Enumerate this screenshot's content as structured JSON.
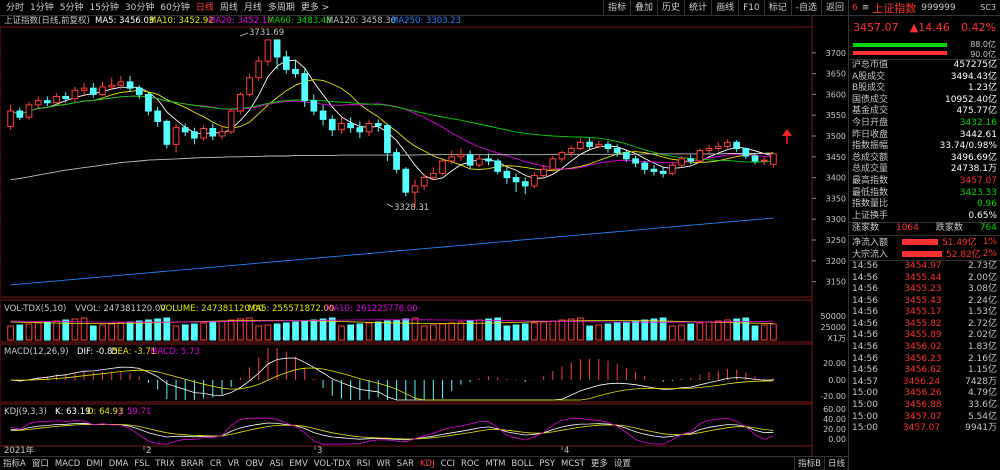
{
  "period_tabs": [
    "分时",
    "1分钟",
    "5分钟",
    "15分钟",
    "30分钟",
    "60分钟",
    "日线",
    "周线",
    "月线",
    "多周期",
    "更多 >"
  ],
  "active_period": "日线",
  "tool_tabs": [
    "指标",
    "叠加",
    "历史",
    "统计",
    "画线",
    "F10",
    "标记",
    "-自选",
    "返回"
  ],
  "main_legend": {
    "name": "上证指数(日线,前复权)",
    "ma5": "MA5: 3456.03",
    "ma10": "MA10: 3452.92",
    "ma20": "MA20: 3452.19",
    "ma60": "MA60: 3483.43",
    "ma120": "MA120: 3458.30",
    "ma250": "MA250: 3303.23"
  },
  "annotations": {
    "high": "3731.69",
    "low": "3328.31"
  },
  "price_axis": [
    "3700",
    "3650",
    "3600",
    "3550",
    "3500",
    "3450",
    "3400",
    "3350",
    "3300",
    "3250",
    "3200",
    "3150"
  ],
  "vol_legend": {
    "name": "VOL-TDX(5,10)",
    "vvol": "VVOL: 247381120.00",
    "volume": "VOLUME: 247381120.00",
    "ma5": "MA5: 255571872.00",
    "ma10": "MA10: 261225776.00"
  },
  "vol_axis": [
    "50000",
    "25000",
    "X1万"
  ],
  "macd_legend": {
    "name": "MACD(12,26,9)",
    "dif": "DIF: -0.85",
    "dea": "DEA: -3.71",
    "macd": "MACD: 5.73"
  },
  "macd_axis": [
    "20.00",
    "0.00",
    "-20.00"
  ],
  "kdj_legend": {
    "name": "KDJ(9,3,3)",
    "k": "K: 63.19",
    "d": "D: 64.93",
    "j": "J: 59.71"
  },
  "kdj_axis": [
    "60.00",
    "40.00",
    "20.00",
    "0.00"
  ],
  "time_axis": {
    "year": "2021年",
    "m2": "2",
    "m3": "3",
    "m4": "4"
  },
  "bottom_tabs": [
    "指标A",
    "窗口",
    "MACD",
    "DMI",
    "DMA",
    "FSL",
    "TRIX",
    "BRAR",
    "CR",
    "VR",
    "OBV",
    "ASI",
    "EMV",
    "VOL-TDX",
    "RSI",
    "WR",
    "SAR",
    "KDJ",
    "CCI",
    "ROC",
    "MTM",
    "BOLL",
    "PSY",
    "MCST",
    "更多",
    "设置"
  ],
  "active_bottom": "KDJ",
  "bottom_corner": [
    "指标B",
    "日线"
  ],
  "sidebar": {
    "num": "6",
    "icon": "≡",
    "name": "上证指数",
    "code": "999999",
    "sc": "SC3",
    "price": "3457.07",
    "change": "▲14.46",
    "pct": "0.42%",
    "bar1": "88.0亿",
    "bar2": "90.0亿",
    "stats": [
      {
        "label": "沪总市值",
        "value": "457275亿",
        "color": "white"
      },
      {
        "label": "A股成交",
        "value": "3494.43亿",
        "color": "white"
      },
      {
        "label": "B股成交",
        "value": "1.23亿",
        "color": "white"
      },
      {
        "label": "国债成交",
        "value": "10952.40亿",
        "color": "white"
      },
      {
        "label": "基金成交",
        "value": "475.77亿",
        "color": "white"
      },
      {
        "label": "今日开盘",
        "value": "3432.16",
        "color": "green"
      },
      {
        "label": "昨日收盘",
        "value": "3442.61",
        "color": "white"
      },
      {
        "label": "指数振幅",
        "value": "33.74/0.98%",
        "color": "white"
      },
      {
        "label": "总成交额",
        "value": "3496.69亿",
        "color": "white"
      },
      {
        "label": "总成交量",
        "value": "24738.1万",
        "color": "white"
      },
      {
        "label": "最高指数",
        "value": "3457.07",
        "color": "red"
      },
      {
        "label": "最低指数",
        "value": "3423.33",
        "color": "green"
      },
      {
        "label": "指数量比",
        "value": "0.96",
        "color": "green"
      },
      {
        "label": "上证换手",
        "value": "0.65%",
        "color": "white"
      }
    ],
    "updown": {
      "up_label": "涨家数",
      "up": "1064",
      "down_label": "跌家数",
      "down": "764"
    },
    "flows": [
      {
        "label": "净流入额",
        "value": "51.49亿",
        "pct": "1%"
      },
      {
        "label": "大宗流入",
        "value": "52.82亿",
        "pct": "2%"
      }
    ],
    "ticks": [
      {
        "t": "14:56",
        "p": "3454.97",
        "q": "2.73亿"
      },
      {
        "t": "14:56",
        "p": "3455.44",
        "q": "2.00亿"
      },
      {
        "t": "14:56",
        "p": "3455.23",
        "q": "3.08亿"
      },
      {
        "t": "14:56",
        "p": "3455.43",
        "q": "2.24亿"
      },
      {
        "t": "14:56",
        "p": "3455.17",
        "q": "1.53亿"
      },
      {
        "t": "14:56",
        "p": "3455.82",
        "q": "2.72亿"
      },
      {
        "t": "14:56",
        "p": "3455.89",
        "q": "2.02亿"
      },
      {
        "t": "14:56",
        "p": "3456.02",
        "q": "1.83亿"
      },
      {
        "t": "14:56",
        "p": "3456.23",
        "q": "2.16亿"
      },
      {
        "t": "14:56",
        "p": "3456.62",
        "q": "1.15亿"
      },
      {
        "t": "14:57",
        "p": "3456.24",
        "q": "7428万"
      },
      {
        "t": "15:00",
        "p": "3456.26",
        "q": "4.79亿"
      },
      {
        "t": "15:00",
        "p": "3456.88",
        "q": "33.6亿"
      },
      {
        "t": "15:00",
        "p": "3457.07",
        "q": "5.54亿"
      },
      {
        "t": "15:00",
        "p": "3457.07",
        "q": "9941万"
      }
    ]
  },
  "chart_data": {
    "type": "candlestick",
    "ylim": [
      3125,
      3750
    ],
    "candles": [
      [
        3523,
        3560,
        3575,
        3515
      ],
      [
        3560,
        3545,
        3568,
        3538
      ],
      [
        3545,
        3575,
        3582,
        3540
      ],
      [
        3575,
        3585,
        3595,
        3565
      ],
      [
        3585,
        3580,
        3595,
        3572
      ],
      [
        3580,
        3595,
        3603,
        3574
      ],
      [
        3595,
        3590,
        3605,
        3580
      ],
      [
        3590,
        3610,
        3618,
        3582
      ],
      [
        3610,
        3615,
        3628,
        3600
      ],
      [
        3615,
        3600,
        3628,
        3592
      ],
      [
        3600,
        3618,
        3630,
        3596
      ],
      [
        3618,
        3622,
        3640,
        3610
      ],
      [
        3622,
        3630,
        3645,
        3612
      ],
      [
        3630,
        3615,
        3645,
        3606
      ],
      [
        3615,
        3600,
        3622,
        3590
      ],
      [
        3600,
        3560,
        3605,
        3550
      ],
      [
        3560,
        3535,
        3570,
        3522
      ],
      [
        3535,
        3480,
        3540,
        3470
      ],
      [
        3480,
        3520,
        3530,
        3460
      ],
      [
        3520,
        3510,
        3530,
        3500
      ],
      [
        3510,
        3495,
        3520,
        3480
      ],
      [
        3495,
        3518,
        3525,
        3488
      ],
      [
        3518,
        3500,
        3530,
        3490
      ],
      [
        3500,
        3510,
        3525,
        3492
      ],
      [
        3510,
        3560,
        3565,
        3505
      ],
      [
        3560,
        3600,
        3605,
        3552
      ],
      [
        3600,
        3640,
        3650,
        3595
      ],
      [
        3640,
        3680,
        3690,
        3632
      ],
      [
        3680,
        3731,
        3731,
        3668
      ],
      [
        3731,
        3690,
        3720,
        3660
      ],
      [
        3690,
        3660,
        3705,
        3650
      ],
      [
        3660,
        3650,
        3680,
        3640
      ],
      [
        3650,
        3585,
        3660,
        3570
      ],
      [
        3585,
        3560,
        3600,
        3550
      ],
      [
        3560,
        3540,
        3575,
        3525
      ],
      [
        3540,
        3515,
        3550,
        3500
      ],
      [
        3515,
        3530,
        3545,
        3505
      ],
      [
        3530,
        3520,
        3545,
        3508
      ],
      [
        3520,
        3510,
        3535,
        3495
      ],
      [
        3510,
        3530,
        3540,
        3500
      ],
      [
        3530,
        3525,
        3540,
        3510
      ],
      [
        3525,
        3460,
        3530,
        3440
      ],
      [
        3460,
        3420,
        3470,
        3410
      ],
      [
        3420,
        3365,
        3425,
        3355
      ],
      [
        3365,
        3380,
        3395,
        3328
      ],
      [
        3380,
        3400,
        3410,
        3370
      ],
      [
        3400,
        3410,
        3425,
        3395
      ],
      [
        3410,
        3440,
        3448,
        3405
      ],
      [
        3440,
        3450,
        3465,
        3432
      ],
      [
        3450,
        3455,
        3470,
        3440
      ],
      [
        3455,
        3430,
        3465,
        3420
      ],
      [
        3430,
        3445,
        3455,
        3425
      ],
      [
        3445,
        3440,
        3458,
        3430
      ],
      [
        3440,
        3415,
        3445,
        3408
      ],
      [
        3415,
        3400,
        3425,
        3385
      ],
      [
        3400,
        3390,
        3410,
        3365
      ],
      [
        3390,
        3380,
        3400,
        3360
      ],
      [
        3380,
        3405,
        3412,
        3375
      ],
      [
        3405,
        3420,
        3430,
        3398
      ],
      [
        3420,
        3445,
        3452,
        3415
      ],
      [
        3445,
        3460,
        3465,
        3438
      ],
      [
        3460,
        3470,
        3478,
        3450
      ],
      [
        3470,
        3485,
        3495,
        3465
      ],
      [
        3485,
        3475,
        3495,
        3468
      ],
      [
        3475,
        3480,
        3488,
        3470
      ],
      [
        3480,
        3470,
        3488,
        3460
      ],
      [
        3470,
        3460,
        3480,
        3450
      ],
      [
        3460,
        3445,
        3465,
        3438
      ],
      [
        3445,
        3435,
        3452,
        3425
      ],
      [
        3435,
        3420,
        3440,
        3408
      ],
      [
        3420,
        3415,
        3430,
        3405
      ],
      [
        3415,
        3410,
        3425,
        3400
      ],
      [
        3410,
        3430,
        3438,
        3405
      ],
      [
        3430,
        3445,
        3452,
        3425
      ],
      [
        3445,
        3440,
        3455,
        3432
      ],
      [
        3440,
        3465,
        3470,
        3435
      ],
      [
        3465,
        3470,
        3478,
        3458
      ],
      [
        3470,
        3475,
        3485,
        3465
      ],
      [
        3475,
        3485,
        3492,
        3470
      ],
      [
        3485,
        3470,
        3490,
        3462
      ],
      [
        3470,
        3452,
        3472,
        3445
      ],
      [
        3452,
        3440,
        3458,
        3432
      ],
      [
        3440,
        3442,
        3450,
        3430
      ],
      [
        3432,
        3457,
        3457,
        3423
      ]
    ],
    "ma_series": [
      {
        "name": "MA5",
        "color": "#ffffff"
      },
      {
        "name": "MA10",
        "color": "#e6e600"
      },
      {
        "name": "MA20",
        "color": "#e000e0"
      },
      {
        "name": "MA60",
        "color": "#00d600"
      },
      {
        "name": "MA120",
        "color": "#c0c0c0"
      },
      {
        "name": "MA250",
        "color": "#2080ff"
      }
    ]
  }
}
